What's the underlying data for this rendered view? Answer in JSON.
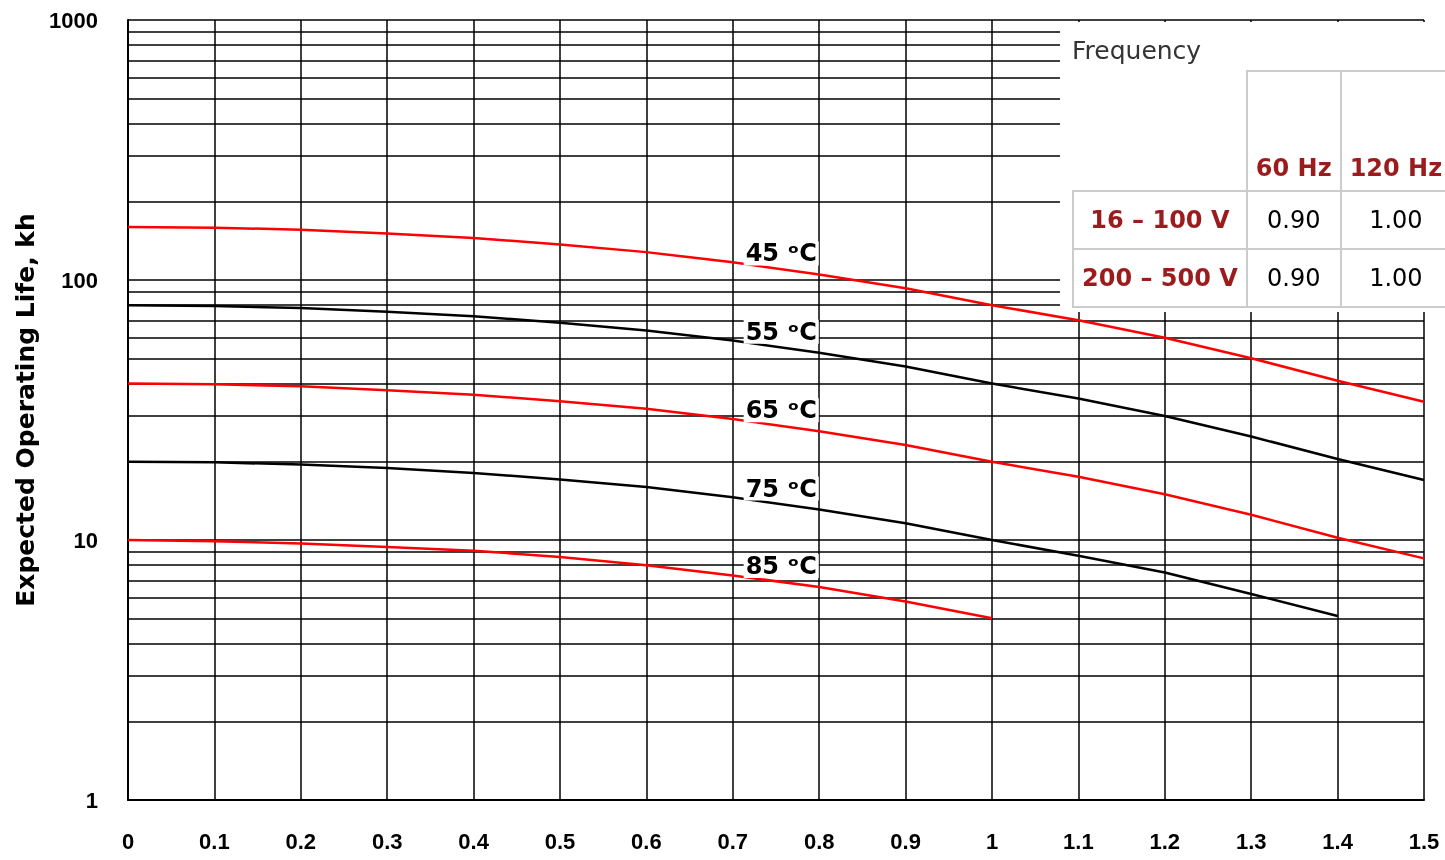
{
  "chart_data": {
    "type": "line",
    "ylabel": "Expected Operating Life, kh",
    "x": [
      0,
      0.1,
      0.2,
      0.3,
      0.4,
      0.5,
      0.6,
      0.7,
      0.8,
      0.9,
      1.0,
      1.1,
      1.2,
      1.3,
      1.4,
      1.5
    ],
    "series": [
      {
        "name": "45 ᵒC",
        "color": "#ff0000",
        "values": [
          160,
          159,
          156,
          151,
          145,
          137,
          128,
          117,
          105,
          93,
          80,
          70,
          60,
          50,
          41,
          34
        ]
      },
      {
        "name": "55 ᵒC",
        "color": "#000000",
        "values": [
          80,
          79.5,
          78,
          75.5,
          72.5,
          68.5,
          64,
          58.5,
          52.5,
          46.5,
          40,
          35,
          30,
          25,
          20.5,
          17
        ]
      },
      {
        "name": "65 ᵒC",
        "color": "#ff0000",
        "values": [
          40,
          39.7,
          39,
          37.7,
          36.2,
          34.2,
          32,
          29.2,
          26.2,
          23.2,
          20,
          17.5,
          15,
          12.5,
          10.2,
          8.5
        ]
      },
      {
        "name": "75 ᵒC",
        "color": "#000000",
        "values": [
          20,
          19.9,
          19.5,
          18.9,
          18.1,
          17.1,
          16,
          14.6,
          13.1,
          11.6,
          10,
          8.7,
          7.5,
          6.2,
          5.1,
          null
        ]
      },
      {
        "name": "85 ᵒC",
        "color": "#ff0000",
        "values": [
          10,
          9.9,
          9.7,
          9.4,
          9.1,
          8.6,
          8,
          7.3,
          6.6,
          5.8,
          5,
          null,
          null,
          null,
          null,
          null
        ]
      }
    ],
    "xlim": [
      0,
      1.5
    ],
    "xticks": [
      0,
      0.1,
      0.2,
      0.3,
      0.4,
      0.5,
      0.6,
      0.7,
      0.8,
      0.9,
      1,
      1.1,
      1.2,
      1.3,
      1.4,
      1.5
    ],
    "ylim": [
      1,
      1000
    ],
    "yticks": [
      1,
      {
        "value": 2,
        "label": null
      },
      {
        "value": 3,
        "label": null
      },
      {
        "value": 4,
        "label": null
      },
      {
        "value": 5,
        "label": null
      },
      {
        "value": 6,
        "label": null
      },
      {
        "value": 7,
        "label": null
      },
      {
        "value": 8,
        "label": null
      },
      {
        "value": 9,
        "label": null
      },
      10,
      {
        "value": 20,
        "label": null
      },
      {
        "value": 30,
        "label": null
      },
      {
        "value": 40,
        "label": null
      },
      {
        "value": 50,
        "label": null
      },
      {
        "value": 60,
        "label": null
      },
      {
        "value": 70,
        "label": null
      },
      {
        "value": 80,
        "label": null
      },
      {
        "value": 90,
        "label": null
      },
      100,
      {
        "value": 200,
        "label": null
      },
      {
        "value": 300,
        "label": null
      },
      {
        "value": 400,
        "label": null
      },
      {
        "value": 500,
        "label": null
      },
      {
        "value": 600,
        "label": null
      },
      {
        "value": 700,
        "label": null
      },
      {
        "value": 800,
        "label": null
      },
      {
        "value": 900,
        "label": null
      },
      1000
    ],
    "log": "y",
    "grid": true,
    "legend": false,
    "marker": "none",
    "line_style": "solid",
    "annotations": [
      "Frequency",
      "60 Hz",
      "120 Hz",
      "16 – 100 V",
      "0.90",
      "1.00",
      "200 – 500 V",
      "0.90",
      "1.00"
    ]
  }
}
